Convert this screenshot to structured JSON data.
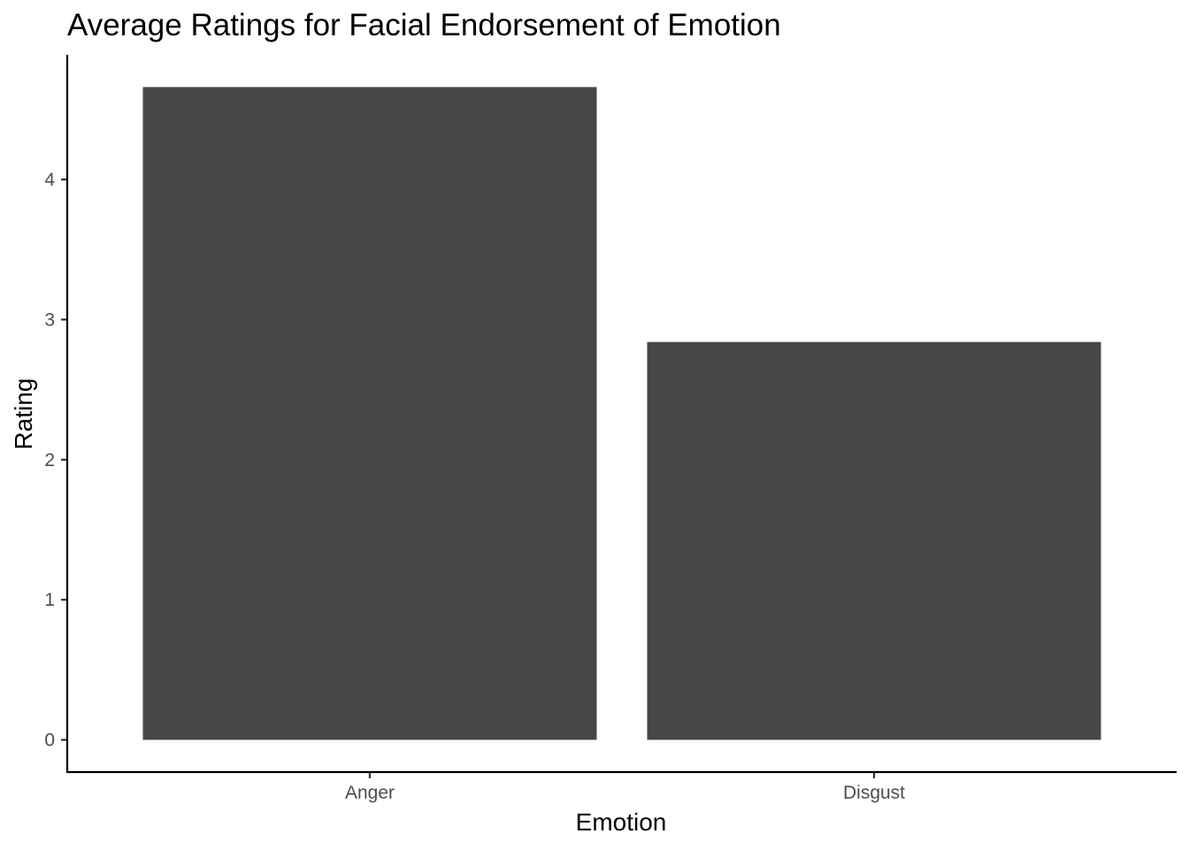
{
  "chart_data": {
    "type": "bar",
    "title": "Average Ratings for Facial Endorsement of Emotion",
    "xlabel": "Emotion",
    "ylabel": "Rating",
    "categories": [
      "Anger",
      "Disgust"
    ],
    "values": [
      4.66,
      2.84
    ],
    "ylim": [
      -0.23,
      4.89
    ],
    "yticks": [
      0,
      1,
      2,
      3,
      4
    ],
    "bar_color": "#474747",
    "grid": false,
    "legend": "none"
  }
}
